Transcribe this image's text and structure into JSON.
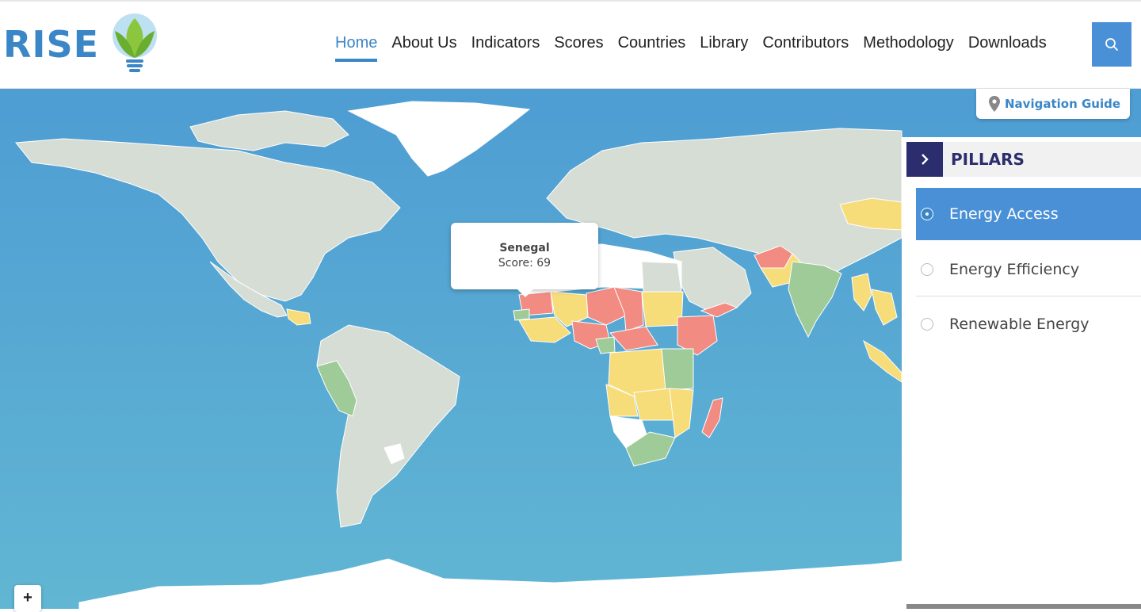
{
  "header": {
    "logo_text": "RISE",
    "nav": [
      "Home",
      "About Us",
      "Indicators",
      "Scores",
      "Countries",
      "Library",
      "Contributors",
      "Methodology",
      "Downloads"
    ],
    "active_nav": "Home"
  },
  "map": {
    "tooltip": {
      "country": "Senegal",
      "score": "Score: 69"
    },
    "navigation_guide": "Navigation Guide",
    "zoom_in": "+",
    "colors": {
      "ocean": "#55a6d6",
      "no_data": "#d6ddd5",
      "red": "#f28b82",
      "yellow": "#f7dc7a",
      "green": "#9ecb98",
      "white": "#ffffff"
    }
  },
  "pillars": {
    "title": "PILLARS",
    "items": [
      {
        "label": "Energy Access",
        "selected": true
      },
      {
        "label": "Energy Efficiency",
        "selected": false
      },
      {
        "label": "Renewable Energy",
        "selected": false
      }
    ]
  }
}
